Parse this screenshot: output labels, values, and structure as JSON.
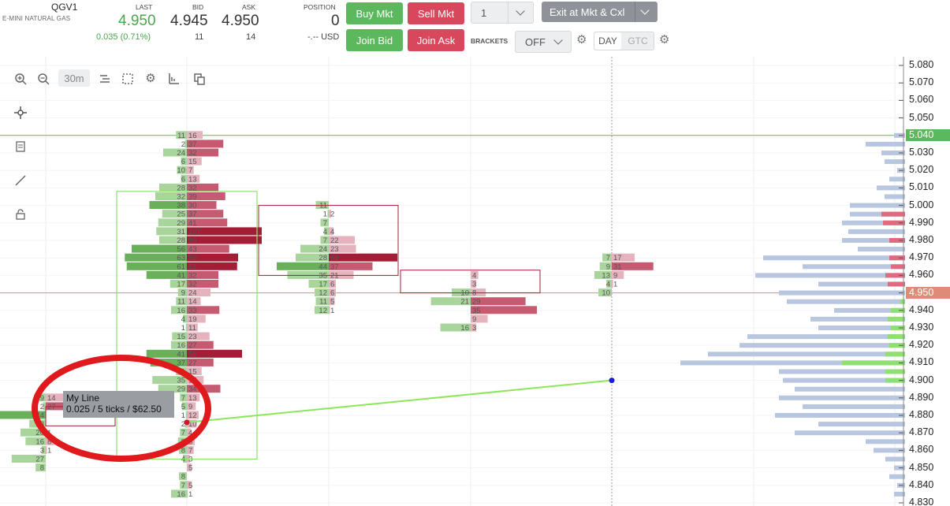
{
  "header": {
    "symbol": "QGV1",
    "symbol_name": "E-MINI NATURAL GAS",
    "last_label": "LAST",
    "last_value": "4.950",
    "last_change": "0.035 (0.71%)",
    "bid_label": "BID",
    "bid_value": "4.945",
    "bid_size": "11",
    "ask_label": "ASK",
    "ask_value": "4.950",
    "ask_size": "14",
    "position_label": "POSITION",
    "position_value": "0",
    "position_pnl": "-.-- USD",
    "buy_mkt": "Buy Mkt",
    "sell_mkt": "Sell Mkt",
    "join_bid": "Join Bid",
    "join_ask": "Join Ask",
    "quantity": "1",
    "exit_label": "Exit at Mkt & Cxl",
    "brackets_label": "BRACKETS",
    "brackets_value": "OFF",
    "tif_day": "DAY",
    "tif_gtc": "GTC"
  },
  "toolbar": {
    "timeframe": "30m",
    "icons": [
      "zoom-in-icon",
      "zoom-out-icon",
      "timeframe",
      "bars-icon",
      "selection-icon",
      "settings-icon",
      "chart-type-icon",
      "template-icon"
    ],
    "side_icons": [
      "crosshair-icon",
      "notes-icon",
      "line-tool-icon",
      "lock-icon"
    ]
  },
  "price_axis": {
    "ticks": [
      "5.080",
      "5.070",
      "5.060",
      "5.050",
      "5.040",
      "5.030",
      "5.020",
      "5.010",
      "5.000",
      "4.990",
      "4.980",
      "4.970",
      "4.960",
      "4.950",
      "4.940",
      "4.930",
      "4.920",
      "4.910",
      "4.900",
      "4.890",
      "4.880",
      "4.870",
      "4.860",
      "4.850",
      "4.840",
      "4.830"
    ],
    "current_green": "5.040",
    "current_red": "4.950",
    "green_color": "#5cb85c",
    "red_color": "#e08a78"
  },
  "annotation": {
    "line_name": "My Line",
    "line_info": "0.025 / 5 ticks / $62.50",
    "line_color": "#8ce65a",
    "circle_color": "#e0191c"
  },
  "footprint": {
    "candle2_numbers": [
      [
        "11",
        "16"
      ],
      [
        "2",
        "37"
      ],
      [
        "24",
        "32"
      ],
      [
        "6",
        "15"
      ],
      [
        "10",
        "7"
      ],
      [
        "6",
        "13"
      ],
      [
        "28",
        "32"
      ],
      [
        "32",
        "39"
      ],
      [
        "38",
        "30"
      ],
      [
        "25",
        "37"
      ],
      [
        "29",
        "41"
      ],
      [
        "31",
        "107"
      ],
      [
        "28",
        "86"
      ],
      [
        "56",
        "43"
      ],
      [
        "63",
        "52"
      ],
      [
        "61",
        "51"
      ],
      [
        "41",
        "32"
      ],
      [
        "17",
        "32"
      ],
      [
        "9",
        "24"
      ],
      [
        "11",
        "14"
      ],
      [
        "16",
        "33"
      ],
      [
        "4",
        "19"
      ],
      [
        "1",
        "11"
      ],
      [
        "15",
        "23"
      ],
      [
        "16",
        "27"
      ],
      [
        "41",
        "56"
      ],
      [
        "37",
        "27"
      ],
      [
        "11",
        "15"
      ],
      [
        "35",
        "17"
      ],
      [
        "29",
        "34"
      ],
      [
        "7",
        "13"
      ],
      [
        "5",
        "9"
      ],
      [
        "1",
        "12"
      ],
      [
        "2",
        "10"
      ],
      [
        "7",
        "4"
      ],
      [
        "9",
        "8"
      ],
      [
        "8",
        "7"
      ],
      [
        "4",
        "3"
      ],
      [
        "",
        "5"
      ],
      [
        "8",
        ""
      ],
      [
        "7",
        "5"
      ],
      [
        "16",
        "1"
      ]
    ],
    "candle3_numbers": [
      [
        "11",
        ""
      ],
      [
        "1",
        "2"
      ],
      [
        "7",
        ""
      ],
      [
        "4",
        "4"
      ],
      [
        "7",
        "22"
      ],
      [
        "24",
        "23"
      ],
      [
        "28",
        "58"
      ],
      [
        "44",
        "37"
      ],
      [
        "35",
        "21"
      ],
      [
        "17",
        "6"
      ],
      [
        "12",
        "6"
      ],
      [
        "11",
        "5"
      ],
      [
        "12",
        "1"
      ]
    ],
    "candle4_numbers": [
      [
        "",
        "4"
      ],
      [
        "",
        "3"
      ],
      [
        "10",
        "8"
      ],
      [
        "21",
        "29"
      ],
      [
        "",
        "35"
      ],
      [
        "",
        "9"
      ],
      [
        "16",
        "3"
      ]
    ],
    "candle5_numbers": [
      [
        "7",
        "17"
      ],
      [
        "9",
        "31"
      ],
      [
        "13",
        "9"
      ],
      [
        "4",
        "1"
      ],
      [
        "10",
        ""
      ]
    ],
    "candle1_numbers": [
      [
        "9",
        "14"
      ],
      [
        "2",
        "27"
      ],
      [
        "44",
        ""
      ],
      [
        "13",
        ""
      ],
      [
        "20",
        "1"
      ],
      [
        "16",
        "8"
      ],
      [
        "3",
        "1"
      ],
      [
        "27",
        ""
      ],
      [
        "8",
        ""
      ]
    ]
  }
}
